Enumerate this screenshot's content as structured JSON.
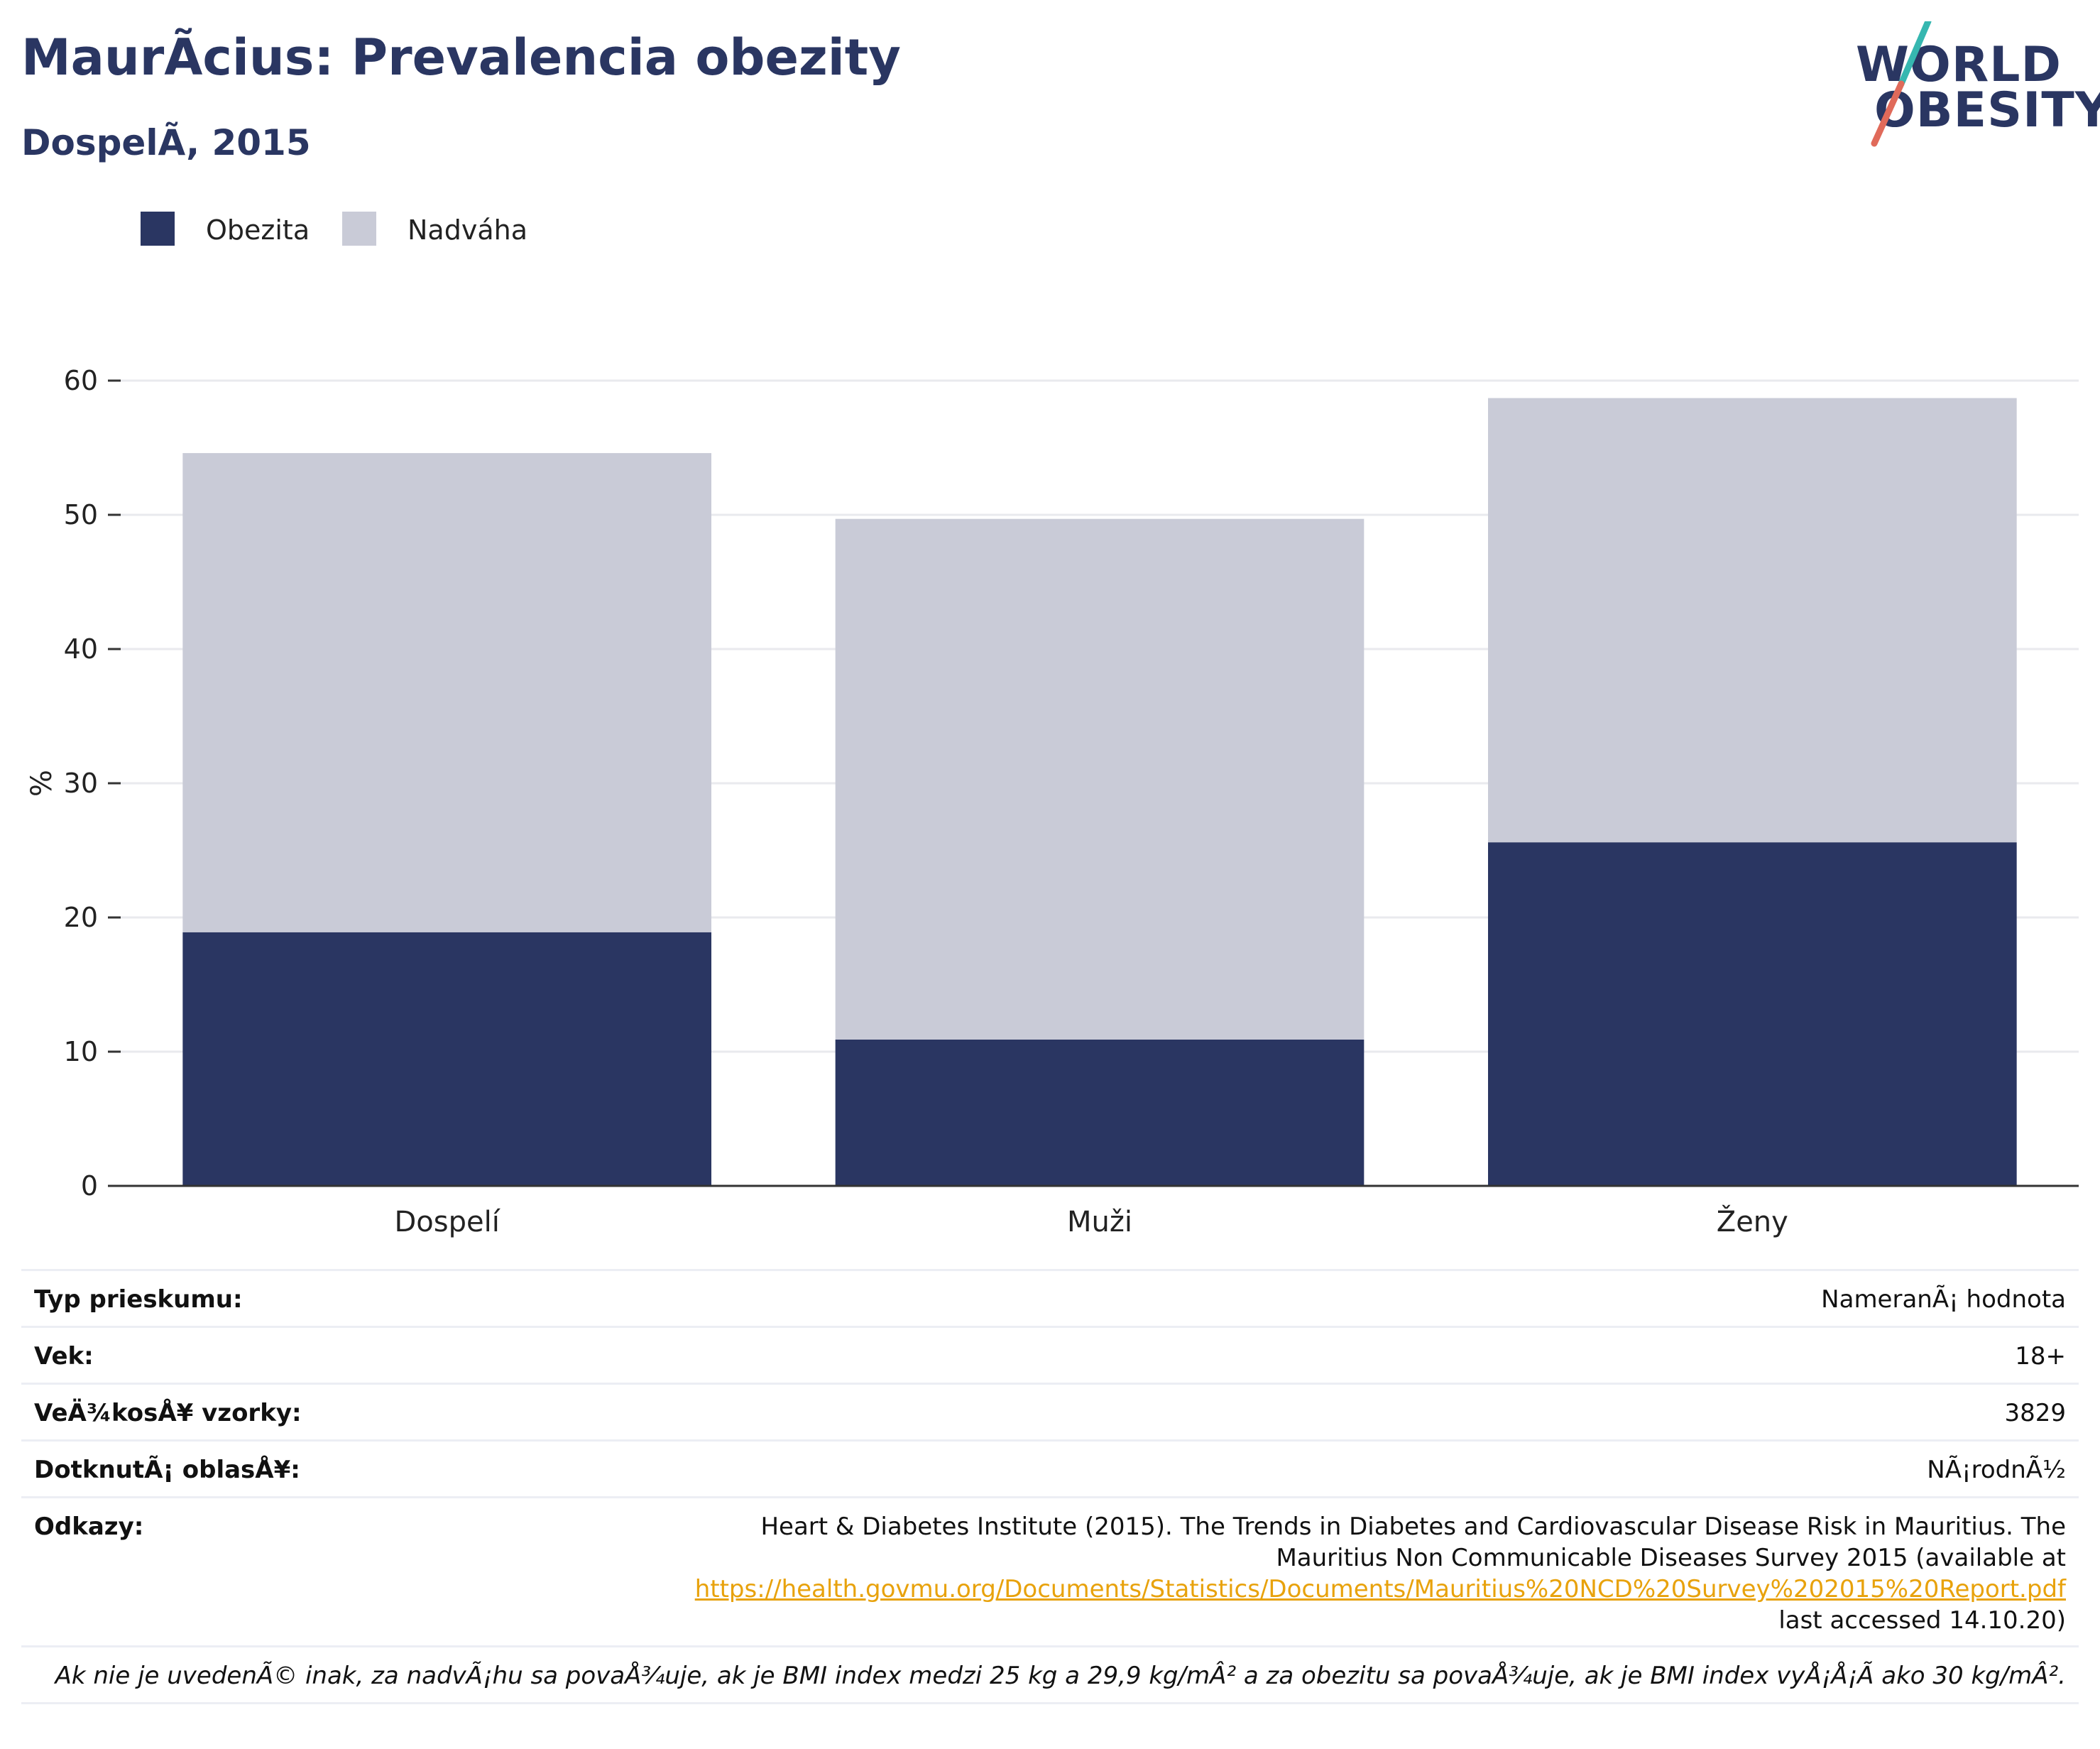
{
  "header": {
    "title": "MaurÃcius: Prevalencia obezity",
    "subtitle": "DospelÃ, 2015"
  },
  "logo": {
    "line1": "WORLD",
    "line2": "OBESITY",
    "accent1": "#e06a5a",
    "accent2": "#36b7b0"
  },
  "colors": {
    "obesity": "#2a3662",
    "overweight": "#c9cbd7",
    "grid": "#e9eaee",
    "axis": "#333333"
  },
  "chart_data": {
    "type": "bar",
    "stacked": true,
    "categories": [
      "Dospelí",
      "Muži",
      "Ženy"
    ],
    "series": [
      {
        "name": "Obezita",
        "values": [
          18.9,
          10.9,
          25.6
        ]
      },
      {
        "name": "Nadváha",
        "values": [
          35.7,
          38.8,
          33.1
        ]
      }
    ],
    "ylabel": "%",
    "ylim": [
      0,
      60
    ],
    "yticks": [
      0,
      10,
      20,
      30,
      40,
      50,
      60
    ],
    "grid": true,
    "legend": "top-left"
  },
  "info": {
    "rows": [
      {
        "key": "Typ prieskumu:",
        "value": "NameranÃ¡ hodnota"
      },
      {
        "key": "Vek:",
        "value": "18+"
      },
      {
        "key": "VeÄ¾kosÅ¥ vzorky:",
        "value": "3829"
      },
      {
        "key": "DotknutÃ¡ oblasÅ¥:",
        "value": "NÃ¡rodnÃ½"
      }
    ],
    "reference": {
      "key": "Odkazy:",
      "text_before": "Heart & Diabetes Institute (2015). The Trends in Diabetes and Cardiovascular Disease Risk in Mauritius. The Mauritius Non Communicable Diseases Survey 2015 (available at",
      "link": "https://health.govmu.org/Documents/Statistics/Documents/Mauritius%20NCD%20Survey%202015%20Report.pdf",
      "text_after": "last accessed 14.10.20)"
    },
    "note": "Ak nie je uvedenÃ© inak, za nadvÃ¡hu sa povaÅ¾uje, ak je BMI index medzi 25 kg a 29,9 kg/mÂ² a za obezitu sa povaÅ¾uje, ak je BMI index vyÅ¡Å¡Ã ako 30 kg/mÂ²."
  }
}
